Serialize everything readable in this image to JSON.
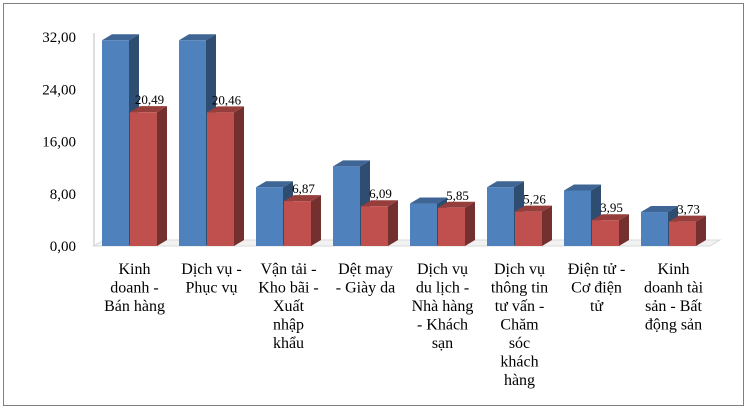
{
  "chart_data": {
    "type": "bar",
    "title": "",
    "xlabel": "",
    "ylabel": "",
    "ylim": [
      0,
      32
    ],
    "yticks": [
      "0,00",
      "8,00",
      "16,00",
      "24,00",
      "32,00"
    ],
    "grid": false,
    "legend": "none",
    "categories": [
      [
        "Kinh",
        "doanh -",
        "Bán hàng"
      ],
      [
        "Dịch vụ -",
        "Phục vụ"
      ],
      [
        "Vận tải -",
        "Kho bãi -",
        "Xuất",
        "nhập",
        "khẩu"
      ],
      [
        "Dệt may",
        "- Giày da"
      ],
      [
        "Dịch vụ",
        "du lịch -",
        "Nhà hàng",
        "- Khách",
        "sạn"
      ],
      [
        "Dịch vụ",
        "thông tin",
        "tư vấn -",
        "Chăm",
        "sóc",
        "khách",
        "hàng"
      ],
      [
        "Điện tử -",
        "Cơ điện",
        "tử"
      ],
      [
        "Kinh",
        "doanh tài",
        "sản - Bất",
        "động sản"
      ]
    ],
    "series": [
      {
        "color": "#4f81bd",
        "values": [
          31.5,
          31.5,
          9.0,
          12.2,
          6.5,
          9.0,
          8.5,
          5.2
        ],
        "labels": []
      },
      {
        "color": "#c0504d",
        "values": [
          20.49,
          20.46,
          6.87,
          6.09,
          5.85,
          5.26,
          3.95,
          3.73
        ],
        "labels": [
          "20,49",
          "20,46",
          "6,87",
          "6,09",
          "5,85",
          "5,26",
          "3,95",
          "3,73"
        ]
      }
    ]
  }
}
